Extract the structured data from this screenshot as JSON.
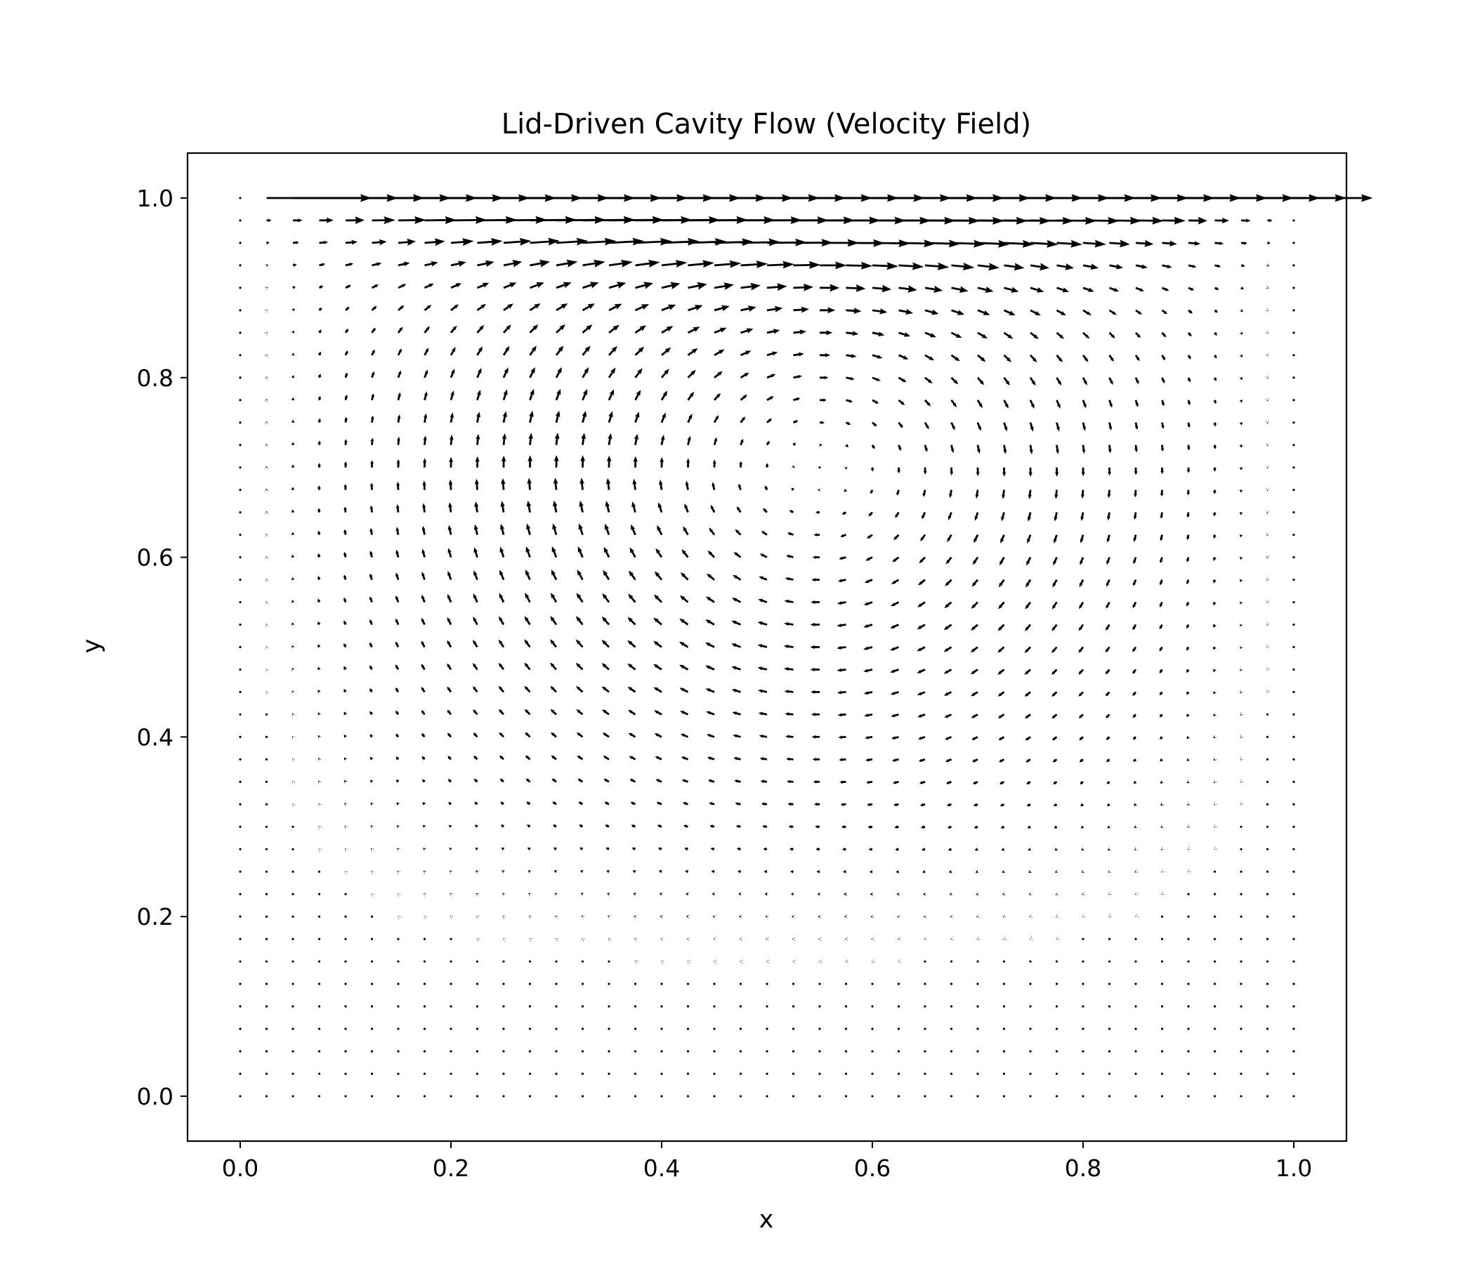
{
  "chart_data": {
    "type": "quiver",
    "title": "Lid-Driven Cavity Flow (Velocity Field)",
    "xlabel": "x",
    "ylabel": "y",
    "xlim": [
      -0.05,
      1.05
    ],
    "ylim": [
      -0.05,
      1.05
    ],
    "xticks": [
      0.0,
      0.2,
      0.4,
      0.6,
      0.8,
      1.0
    ],
    "yticks": [
      0.0,
      0.2,
      0.4,
      0.6,
      0.8,
      1.0
    ],
    "xtick_labels": [
      "0.0",
      "0.2",
      "0.4",
      "0.6",
      "0.8",
      "1.0"
    ],
    "ytick_labels": [
      "0.0",
      "0.2",
      "0.4",
      "0.6",
      "0.8",
      "1.0"
    ],
    "grid": false,
    "legend": "none",
    "field": {
      "grid_size": 41,
      "x_range": [
        0.0,
        1.0
      ],
      "y_range": [
        0.0,
        1.0
      ],
      "lid_velocity": 1.0,
      "description": "clockwise recirculating vortex centred near (0.55, 0.70); lid at y=1.0 moves in +x direction",
      "vortex_center": [
        0.55,
        0.7
      ]
    },
    "colors": {
      "arrow": "#000000",
      "axes": "#000000",
      "background": "#ffffff"
    }
  }
}
